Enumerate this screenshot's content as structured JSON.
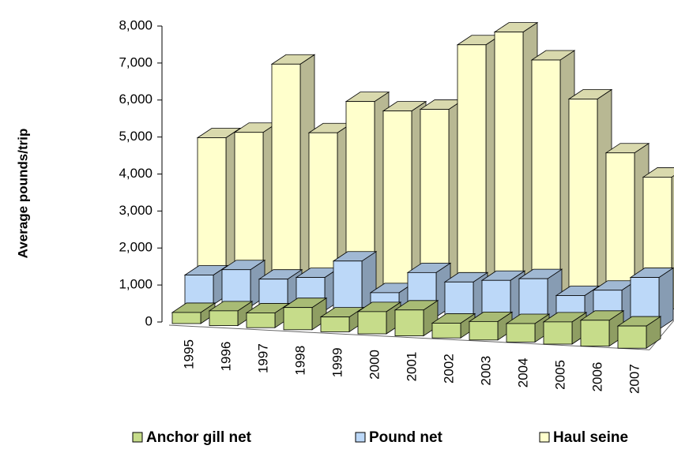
{
  "chart_data": {
    "type": "bar3d",
    "y_label": "Average pounds/trip",
    "categories": [
      "1995",
      "1996",
      "1997",
      "1998",
      "1999",
      "2000",
      "2001",
      "2002",
      "2003",
      "2004",
      "2005",
      "2006",
      "2007"
    ],
    "series": [
      {
        "name": "Anchor gill net",
        "color": "#c6dc8a",
        "values": [
          300,
          400,
          400,
          600,
          400,
          600,
          700,
          400,
          500,
          500,
          600,
          700,
          600
        ]
      },
      {
        "name": "Pound net",
        "color": "#bcd8f8",
        "values": [
          800,
          1000,
          800,
          900,
          1400,
          600,
          1200,
          1000,
          1100,
          1200,
          800,
          1000,
          1400
        ]
      },
      {
        "name": "Haul seine",
        "color": "#ffffcc",
        "values": [
          4000,
          4200,
          6100,
          4300,
          5200,
          5000,
          5100,
          6900,
          7300,
          6600,
          5600,
          4200,
          3600
        ]
      }
    ],
    "ylim": [
      0,
      8000
    ],
    "yticks": [
      0,
      {
        "value": 1000,
        "label": "1,000"
      },
      {
        "value": 2000,
        "label": "2,000"
      },
      {
        "value": 3000,
        "label": "3,000"
      },
      {
        "value": 4000,
        "label": "4,000"
      },
      {
        "value": 5000,
        "label": "5,000"
      },
      {
        "value": 6000,
        "label": "6,000"
      },
      {
        "value": 7000,
        "label": "7,000"
      },
      {
        "value": 8000,
        "label": "8,000"
      }
    ]
  }
}
